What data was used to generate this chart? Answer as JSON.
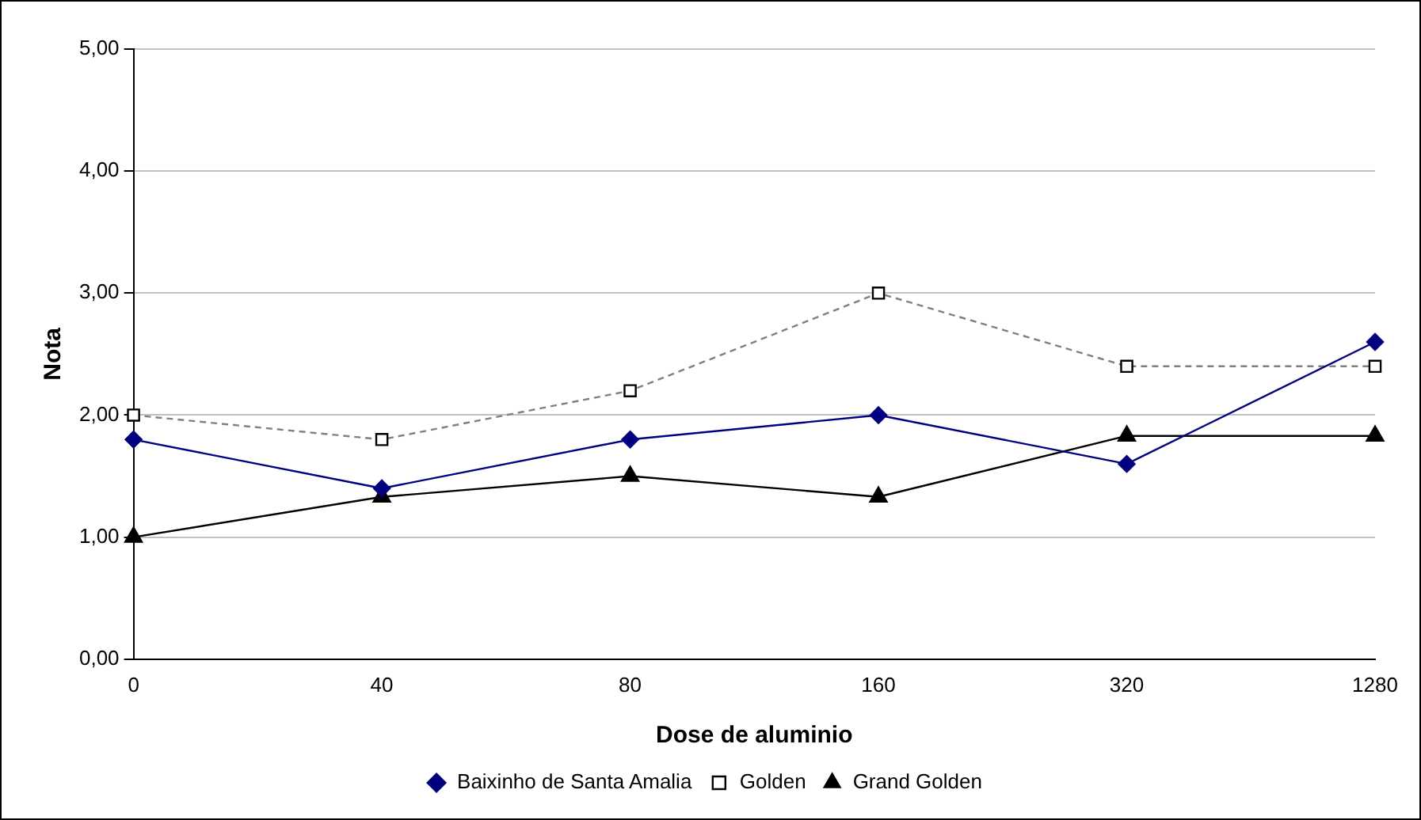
{
  "chart_data": {
    "type": "line",
    "xlabel": "Dose de aluminio",
    "ylabel": "Nota",
    "categories": [
      "0",
      "40",
      "80",
      "160",
      "320",
      "1280"
    ],
    "ylim": [
      0,
      5
    ],
    "yticks": [
      {
        "value": 0,
        "label": "0,00"
      },
      {
        "value": 1,
        "label": "1,00"
      },
      {
        "value": 2,
        "label": "2,00"
      },
      {
        "value": 3,
        "label": "3,00"
      },
      {
        "value": 4,
        "label": "4,00"
      },
      {
        "value": 5,
        "label": "5,00"
      }
    ],
    "grid": "y",
    "legend": "bottom",
    "series": [
      {
        "name": "Baixinho de Santa Amalia",
        "color": "#000080",
        "marker": "diamond",
        "line_style": "solid",
        "values": [
          1.8,
          1.4,
          1.8,
          2.0,
          1.6,
          2.6
        ]
      },
      {
        "name": "Golden",
        "color": "#808080",
        "marker": "square",
        "line_style": "dashed",
        "values": [
          2.0,
          1.8,
          2.2,
          3.0,
          2.4,
          2.4
        ]
      },
      {
        "name": "Grand Golden",
        "color": "#000000",
        "marker": "triangle",
        "line_style": "solid",
        "values": [
          1.0,
          1.33,
          1.5,
          1.33,
          1.83,
          1.83
        ]
      }
    ]
  }
}
